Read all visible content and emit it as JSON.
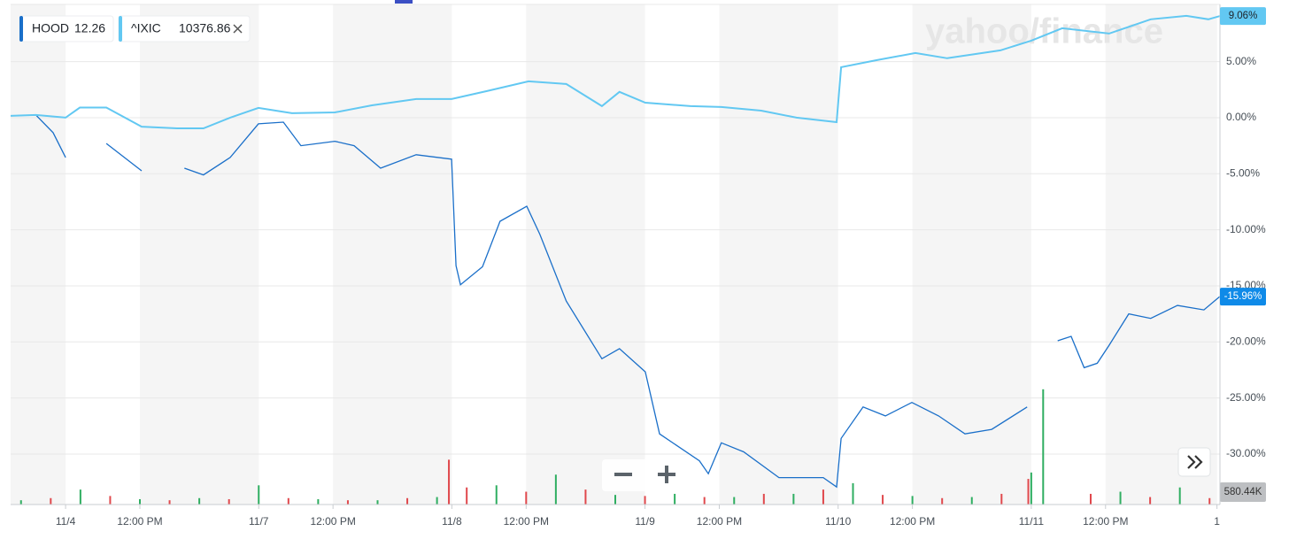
{
  "chart_data": {
    "type": "line",
    "watermark": "yahoo/finance",
    "xlim": [
      -1.85,
      38.85
    ],
    "xticks": [
      {
        "value": 0,
        "label": "11/4"
      },
      {
        "value": 2.5,
        "label": "12:00 PM"
      },
      {
        "value": 6.5,
        "label": "11/7"
      },
      {
        "value": 9,
        "label": "12:00 PM"
      },
      {
        "value": 13,
        "label": "11/8"
      },
      {
        "value": 15.5,
        "label": "12:00 PM"
      },
      {
        "value": 19.5,
        "label": "11/9"
      },
      {
        "value": 22,
        "label": "12:00 PM"
      },
      {
        "value": 26,
        "label": "11/10"
      },
      {
        "value": 28.5,
        "label": "12:00 PM"
      },
      {
        "value": 32.5,
        "label": "11/11"
      },
      {
        "value": 35,
        "label": "12:00 PM"
      },
      {
        "value": 38.75,
        "label": "1"
      }
    ],
    "ylim": [
      -34.5,
      10.1
    ],
    "yticks": [
      {
        "value": 5,
        "label": "5.00%"
      },
      {
        "value": 0,
        "label": "0.00%"
      },
      {
        "value": -5,
        "label": "-5.00%"
      },
      {
        "value": -10,
        "label": "-10.00%"
      },
      {
        "value": -15,
        "label": "-15.00%"
      },
      {
        "value": -20,
        "label": "-20.00%"
      },
      {
        "value": -25,
        "label": "-25.00%"
      },
      {
        "value": -30,
        "label": "-30.00%"
      }
    ],
    "grid": true,
    "series": [
      {
        "name": "HOOD",
        "quote": 12.26,
        "color": "#1a6fc9",
        "end_label": "-15.96%",
        "x": [
          -1.85,
          -1.0,
          -0.42,
          0,
          0.48,
          1.37,
          2.56,
          3.0,
          4.0,
          4.64,
          5.54,
          6.49,
          7.33,
          7.92,
          9.06,
          9.71,
          10.6,
          11.8,
          12.99,
          13.14,
          13.29,
          14.03,
          14.62,
          15.52,
          15.96,
          16.85,
          18.05,
          18.64,
          19.51,
          19.99,
          21.33,
          21.63,
          22.07,
          22.82,
          24.01,
          25.5,
          25.95,
          26.1,
          26.84,
          27.59,
          28.48,
          29.38,
          30.27,
          31.17,
          32.36,
          32.9,
          33.39,
          33.84,
          34.28,
          34.72,
          35.12,
          35.78,
          36.52,
          37.42,
          38.31,
          38.84
        ],
        "values": [
          0.16,
          0.24,
          -1.34,
          -3.55,
          null,
          -2.3,
          -4.74,
          null,
          -4.5,
          -5.1,
          -3.55,
          -0.55,
          -0.4,
          -2.5,
          -2.1,
          -2.5,
          -4.5,
          -3.3,
          -3.7,
          -13.2,
          -14.9,
          -13.3,
          -9.24,
          -7.9,
          -10.4,
          -16.35,
          -21.5,
          -20.6,
          -22.67,
          -28.2,
          -30.6,
          -31.75,
          -29.0,
          -29.8,
          -32.1,
          -32.1,
          -32.94,
          -28.6,
          -25.8,
          -26.6,
          -25.4,
          -26.6,
          -28.2,
          -27.8,
          -25.8,
          null,
          -19.9,
          -19.5,
          -22.3,
          -21.9,
          -20.3,
          -17.5,
          -17.9,
          -16.75,
          -17.14,
          -15.96
        ]
      },
      {
        "name": "^IXIC",
        "quote": 10376.86,
        "color": "#62c8f2",
        "end_label": "9.06%",
        "x": [
          -1.85,
          -1.0,
          0,
          0.48,
          1.37,
          2.56,
          3.75,
          4.64,
          5.54,
          6.49,
          7.62,
          9.06,
          10.31,
          11.8,
          12.99,
          14.18,
          15.58,
          16.85,
          18.05,
          18.64,
          19.51,
          21.03,
          22.07,
          23.41,
          24.6,
          25.95,
          26.1,
          27.29,
          28.6,
          29.67,
          31.46,
          32.5,
          33.54,
          35.12,
          36.52,
          37.72,
          38.46,
          38.84
        ],
        "values": [
          0.16,
          0.24,
          0,
          0.9,
          0.9,
          -0.8,
          -0.95,
          -0.95,
          0,
          0.87,
          0.4,
          0.47,
          1.1,
          1.66,
          1.66,
          2.37,
          3.24,
          3.0,
          1.03,
          2.3,
          1.34,
          1.03,
          0.95,
          0.63,
          0,
          -0.4,
          4.5,
          5.13,
          5.77,
          5.3,
          6.0,
          6.87,
          7.98,
          7.5,
          8.77,
          9.08,
          8.77,
          9.06
        ]
      }
    ],
    "volume": {
      "label": "580.44K",
      "lim": [
        0,
        5600
      ],
      "series": [
        {
          "name": "up",
          "color": "#2fae61",
          "x": [
            -1.5,
            0.5,
            2.5,
            4.5,
            6.5,
            8.5,
            10.5,
            12.5,
            14.5,
            16.5,
            18.5,
            20.5,
            22.5,
            24.5,
            26.5,
            28.5,
            30.5,
            32.5,
            32.9,
            35.5,
            37.5
          ],
          "values": [
            200,
            700,
            250,
            300,
            900,
            250,
            200,
            350,
            900,
            1400,
            450,
            500,
            350,
            500,
            1000,
            400,
            350,
            1500,
            5400,
            600,
            800
          ]
        },
        {
          "name": "down",
          "color": "#e0484c",
          "x": [
            -0.5,
            1.5,
            3.5,
            5.5,
            7.5,
            9.5,
            11.5,
            12.9,
            13.5,
            15.5,
            17.5,
            19.5,
            21.5,
            23.5,
            25.5,
            27.5,
            29.5,
            31.5,
            32.4,
            34.5,
            36.5,
            38.5
          ],
          "values": [
            300,
            400,
            200,
            250,
            300,
            200,
            300,
            2100,
            800,
            600,
            700,
            400,
            350,
            500,
            700,
            450,
            300,
            500,
            1200,
            500,
            350,
            300
          ]
        }
      ]
    }
  }
}
